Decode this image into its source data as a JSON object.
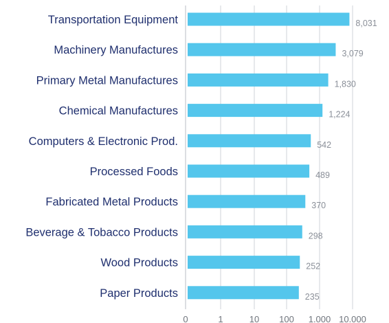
{
  "chart_data": {
    "type": "bar",
    "orientation": "horizontal",
    "x_scale": "log",
    "categories": [
      "Transportation Equipment",
      "Machinery Manufactures",
      "Primary Metal Manufactures",
      "Chemical Manufactures",
      "Computers & Electronic Prod.",
      "Processed Foods",
      "Fabricated Metal Products",
      "Beverage & Tobacco Products",
      "Wood Products",
      "Paper Products"
    ],
    "values": [
      8031,
      3079,
      1830,
      1224,
      542,
      489,
      370,
      298,
      252,
      235
    ],
    "value_labels": [
      "8,031",
      "3,079",
      "1,830",
      "1,224",
      "542",
      "489",
      "370",
      "298",
      "252",
      "235"
    ],
    "x_ticks": [
      0,
      1,
      10,
      100,
      1000,
      10000
    ],
    "x_tick_labels": [
      "0",
      "1",
      "10",
      "100",
      "1.000",
      "10.000"
    ],
    "grid": true,
    "bar_color": "#54c6ec"
  }
}
